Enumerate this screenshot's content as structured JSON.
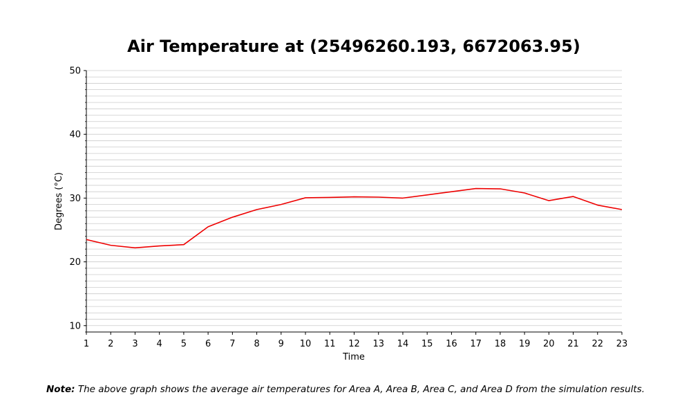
{
  "chart_data": {
    "type": "line",
    "title": "Air Temperature at (25496260.193, 6672063.95)",
    "xlabel": "Time",
    "ylabel": "Degrees (°C)",
    "xlim": [
      1,
      23
    ],
    "ylim": [
      9,
      50
    ],
    "x_ticks": [
      1,
      2,
      3,
      4,
      5,
      6,
      7,
      8,
      9,
      10,
      11,
      12,
      13,
      14,
      15,
      16,
      17,
      18,
      19,
      20,
      21,
      22,
      23
    ],
    "y_ticks": [
      10,
      20,
      30,
      40,
      50
    ],
    "y_minor_step": 1,
    "grid": "horizontal minor gridlines",
    "series": [
      {
        "color": "#ee0000",
        "x": [
          1,
          2,
          3,
          4,
          5,
          6,
          7,
          8,
          9,
          10,
          11,
          12,
          13,
          14,
          15,
          16,
          17,
          18,
          19,
          20,
          21,
          22,
          23
        ],
        "y": [
          23.5,
          22.6,
          22.2,
          22.5,
          22.7,
          25.5,
          27.0,
          28.2,
          29.0,
          30.05,
          30.1,
          30.2,
          30.15,
          30.0,
          30.5,
          31.0,
          31.5,
          31.45,
          30.8,
          29.6,
          30.25,
          28.9,
          28.2
        ]
      }
    ]
  },
  "note": {
    "label": "Note:",
    "text": " The above graph shows the average air temperatures for Area A, Area B, Area C, and Area D from the simulation results."
  }
}
